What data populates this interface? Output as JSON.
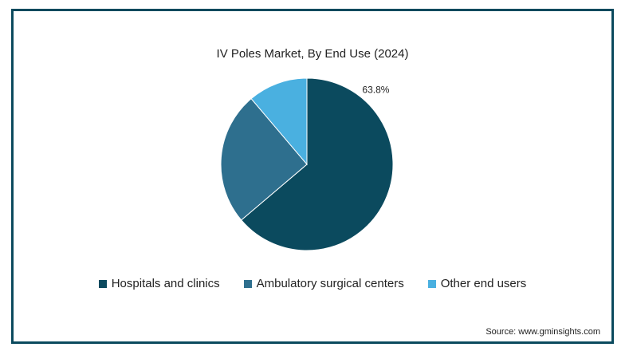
{
  "chart_data": {
    "type": "pie",
    "title": "IV Poles Market, By End Use (2024)",
    "slices": [
      {
        "name": "Hospitals and clinics",
        "value": 63.8,
        "label": "63.8%",
        "color": "#0b4a5e"
      },
      {
        "name": "Ambulatory surgical centers",
        "value": 25.0,
        "label": "",
        "color": "#2e6f8e"
      },
      {
        "name": "Other end users",
        "value": 11.2,
        "label": "",
        "color": "#4ab0e0"
      }
    ],
    "legend_position": "bottom"
  },
  "source": "Source: www.gminsights.com"
}
